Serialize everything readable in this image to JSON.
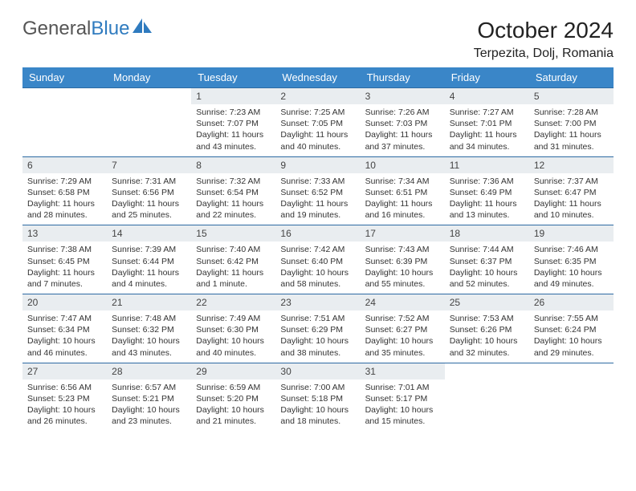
{
  "logo": {
    "text_gray": "General",
    "text_blue": "Blue"
  },
  "title": "October 2024",
  "location": "Terpezita, Dolj, Romania",
  "colors": {
    "header_bg": "#3a86c8",
    "header_text": "#ffffff",
    "daynum_bg": "#e9edf0",
    "row_border": "#2d6aa3",
    "body_text": "#333333",
    "logo_gray": "#555555",
    "logo_blue": "#2f7bbf"
  },
  "daysOfWeek": [
    "Sunday",
    "Monday",
    "Tuesday",
    "Wednesday",
    "Thursday",
    "Friday",
    "Saturday"
  ],
  "firstDayOffset": 2,
  "days": [
    {
      "n": 1,
      "sr": "7:23 AM",
      "ss": "7:07 PM",
      "dl": "11 hours and 43 minutes."
    },
    {
      "n": 2,
      "sr": "7:25 AM",
      "ss": "7:05 PM",
      "dl": "11 hours and 40 minutes."
    },
    {
      "n": 3,
      "sr": "7:26 AM",
      "ss": "7:03 PM",
      "dl": "11 hours and 37 minutes."
    },
    {
      "n": 4,
      "sr": "7:27 AM",
      "ss": "7:01 PM",
      "dl": "11 hours and 34 minutes."
    },
    {
      "n": 5,
      "sr": "7:28 AM",
      "ss": "7:00 PM",
      "dl": "11 hours and 31 minutes."
    },
    {
      "n": 6,
      "sr": "7:29 AM",
      "ss": "6:58 PM",
      "dl": "11 hours and 28 minutes."
    },
    {
      "n": 7,
      "sr": "7:31 AM",
      "ss": "6:56 PM",
      "dl": "11 hours and 25 minutes."
    },
    {
      "n": 8,
      "sr": "7:32 AM",
      "ss": "6:54 PM",
      "dl": "11 hours and 22 minutes."
    },
    {
      "n": 9,
      "sr": "7:33 AM",
      "ss": "6:52 PM",
      "dl": "11 hours and 19 minutes."
    },
    {
      "n": 10,
      "sr": "7:34 AM",
      "ss": "6:51 PM",
      "dl": "11 hours and 16 minutes."
    },
    {
      "n": 11,
      "sr": "7:36 AM",
      "ss": "6:49 PM",
      "dl": "11 hours and 13 minutes."
    },
    {
      "n": 12,
      "sr": "7:37 AM",
      "ss": "6:47 PM",
      "dl": "11 hours and 10 minutes."
    },
    {
      "n": 13,
      "sr": "7:38 AM",
      "ss": "6:45 PM",
      "dl": "11 hours and 7 minutes."
    },
    {
      "n": 14,
      "sr": "7:39 AM",
      "ss": "6:44 PM",
      "dl": "11 hours and 4 minutes."
    },
    {
      "n": 15,
      "sr": "7:40 AM",
      "ss": "6:42 PM",
      "dl": "11 hours and 1 minute."
    },
    {
      "n": 16,
      "sr": "7:42 AM",
      "ss": "6:40 PM",
      "dl": "10 hours and 58 minutes."
    },
    {
      "n": 17,
      "sr": "7:43 AM",
      "ss": "6:39 PM",
      "dl": "10 hours and 55 minutes."
    },
    {
      "n": 18,
      "sr": "7:44 AM",
      "ss": "6:37 PM",
      "dl": "10 hours and 52 minutes."
    },
    {
      "n": 19,
      "sr": "7:46 AM",
      "ss": "6:35 PM",
      "dl": "10 hours and 49 minutes."
    },
    {
      "n": 20,
      "sr": "7:47 AM",
      "ss": "6:34 PM",
      "dl": "10 hours and 46 minutes."
    },
    {
      "n": 21,
      "sr": "7:48 AM",
      "ss": "6:32 PM",
      "dl": "10 hours and 43 minutes."
    },
    {
      "n": 22,
      "sr": "7:49 AM",
      "ss": "6:30 PM",
      "dl": "10 hours and 40 minutes."
    },
    {
      "n": 23,
      "sr": "7:51 AM",
      "ss": "6:29 PM",
      "dl": "10 hours and 38 minutes."
    },
    {
      "n": 24,
      "sr": "7:52 AM",
      "ss": "6:27 PM",
      "dl": "10 hours and 35 minutes."
    },
    {
      "n": 25,
      "sr": "7:53 AM",
      "ss": "6:26 PM",
      "dl": "10 hours and 32 minutes."
    },
    {
      "n": 26,
      "sr": "7:55 AM",
      "ss": "6:24 PM",
      "dl": "10 hours and 29 minutes."
    },
    {
      "n": 27,
      "sr": "6:56 AM",
      "ss": "5:23 PM",
      "dl": "10 hours and 26 minutes."
    },
    {
      "n": 28,
      "sr": "6:57 AM",
      "ss": "5:21 PM",
      "dl": "10 hours and 23 minutes."
    },
    {
      "n": 29,
      "sr": "6:59 AM",
      "ss": "5:20 PM",
      "dl": "10 hours and 21 minutes."
    },
    {
      "n": 30,
      "sr": "7:00 AM",
      "ss": "5:18 PM",
      "dl": "10 hours and 18 minutes."
    },
    {
      "n": 31,
      "sr": "7:01 AM",
      "ss": "5:17 PM",
      "dl": "10 hours and 15 minutes."
    }
  ],
  "labels": {
    "sunrise": "Sunrise:",
    "sunset": "Sunset:",
    "daylight": "Daylight:"
  }
}
